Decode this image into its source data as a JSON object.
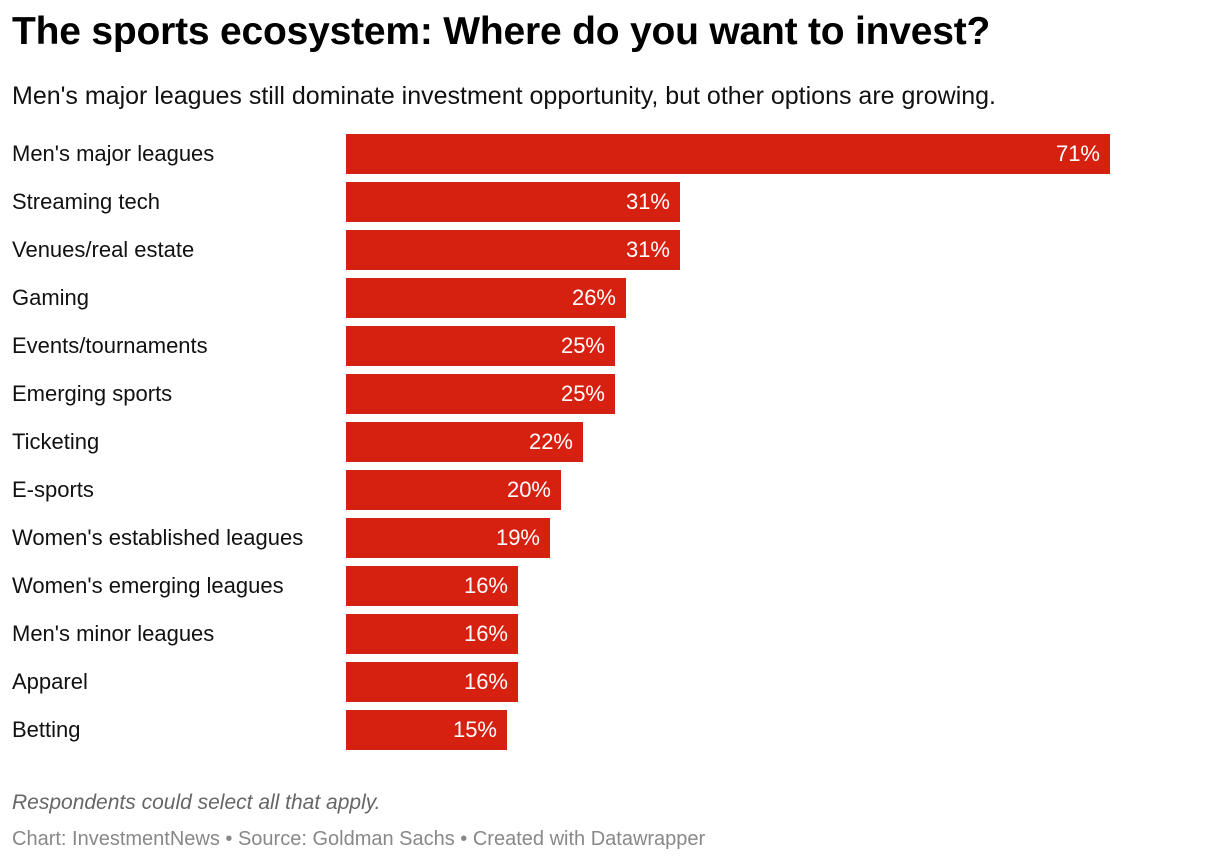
{
  "title": "The sports ecosystem: Where do you want to invest?",
  "subtitle": "Men's major leagues still dominate investment opportunity, but other options are growing.",
  "note": "Respondents could select all that apply.",
  "footer": "Chart: InvestmentNews • Source: Goldman Sachs • Created with Datawrapper",
  "colors": {
    "bar": "#d62010"
  },
  "chart_data": {
    "type": "bar",
    "orientation": "horizontal",
    "categories": [
      "Men's major leagues",
      "Streaming tech",
      "Venues/real estate",
      "Gaming",
      "Events/tournaments",
      "Emerging sports",
      "Ticketing",
      "E-sports",
      "Women's established leagues",
      "Women's emerging leagues",
      "Men's minor leagues",
      "Apparel",
      "Betting"
    ],
    "values": [
      71,
      31,
      31,
      26,
      25,
      25,
      22,
      20,
      19,
      16,
      16,
      16,
      15
    ],
    "value_labels": [
      "71%",
      "31%",
      "31%",
      "26%",
      "25%",
      "25%",
      "22%",
      "20%",
      "19%",
      "16%",
      "16%",
      "16%",
      "15%"
    ],
    "unit": "%",
    "xlim": [
      0,
      71
    ],
    "grid": false,
    "legend": "none"
  }
}
